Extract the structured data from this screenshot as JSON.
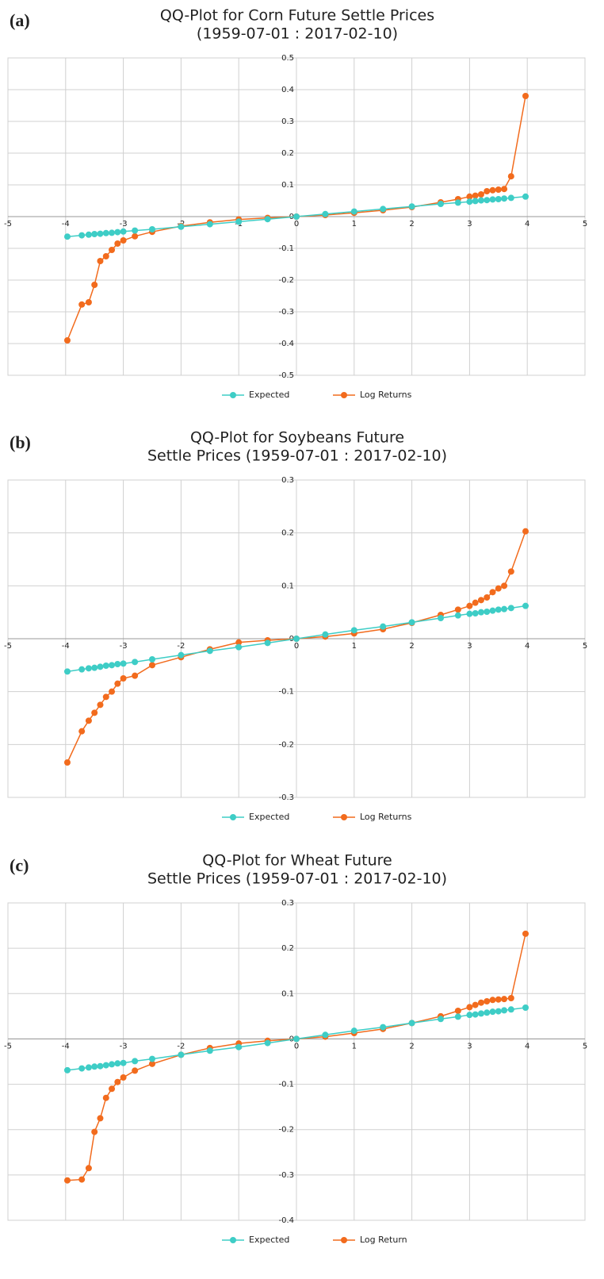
{
  "chart_data": [
    {
      "type": "line",
      "panel": "(a)",
      "title": [
        "QQ-Plot for Corn Future Settle Prices",
        "(1959-07-01 : 2017-02-10)"
      ],
      "xlim": [
        -5,
        5
      ],
      "xticks": [
        -5,
        -4,
        -3,
        -2,
        -1,
        0,
        1,
        2,
        3,
        4,
        5
      ],
      "ylim": [
        -0.5,
        0.5
      ],
      "yticks": [
        -0.5,
        -0.4,
        -0.3,
        -0.2,
        -0.1,
        0,
        0.1,
        0.2,
        0.3,
        0.4,
        0.5
      ],
      "grid": true,
      "legend": "bottom",
      "x": [
        -3.97,
        -3.72,
        -3.6,
        -3.5,
        -3.4,
        -3.3,
        -3.2,
        -3.1,
        -3.0,
        -2.8,
        -2.5,
        -2.0,
        -1.5,
        -1.0,
        -0.5,
        0,
        0.5,
        1.0,
        1.5,
        2.0,
        2.5,
        2.8,
        3.0,
        3.1,
        3.2,
        3.3,
        3.4,
        3.5,
        3.6,
        3.72,
        3.97
      ],
      "series": [
        {
          "name": "Expected",
          "color": "#3ecdc6",
          "values": [
            -0.063,
            -0.059,
            -0.057,
            -0.055,
            -0.054,
            -0.052,
            -0.051,
            -0.049,
            -0.047,
            -0.044,
            -0.04,
            -0.032,
            -0.024,
            -0.016,
            -0.008,
            0,
            0.008,
            0.016,
            0.024,
            0.032,
            0.04,
            0.044,
            0.047,
            0.049,
            0.051,
            0.052,
            0.054,
            0.055,
            0.057,
            0.059,
            0.063
          ]
        },
        {
          "name": "Log Returns",
          "color": "#f26b1d",
          "values": [
            -0.39,
            -0.277,
            -0.27,
            -0.215,
            -0.14,
            -0.125,
            -0.105,
            -0.085,
            -0.075,
            -0.062,
            -0.048,
            -0.03,
            -0.018,
            -0.009,
            -0.004,
            0,
            0.005,
            0.012,
            0.02,
            0.03,
            0.045,
            0.055,
            0.063,
            0.066,
            0.07,
            0.08,
            0.083,
            0.085,
            0.087,
            0.127,
            0.38
          ]
        }
      ]
    },
    {
      "type": "line",
      "panel": "(b)",
      "title": [
        "QQ-Plot for Soybeans Future",
        "Settle Prices (1959-07-01 : 2017-02-10)"
      ],
      "xlim": [
        -5,
        5
      ],
      "xticks": [
        -5,
        -4,
        -3,
        -2,
        -1,
        0,
        1,
        2,
        3,
        4,
        5
      ],
      "ylim": [
        -0.3,
        0.3
      ],
      "yticks": [
        -0.3,
        -0.2,
        -0.1,
        0,
        0.1,
        0.2,
        0.3
      ],
      "grid": true,
      "legend": "bottom",
      "x": [
        -3.97,
        -3.72,
        -3.6,
        -3.5,
        -3.4,
        -3.3,
        -3.2,
        -3.1,
        -3.0,
        -2.8,
        -2.5,
        -2.0,
        -1.5,
        -1.0,
        -0.5,
        0,
        0.5,
        1.0,
        1.5,
        2.0,
        2.5,
        2.8,
        3.0,
        3.1,
        3.2,
        3.3,
        3.4,
        3.5,
        3.6,
        3.72,
        3.97
      ],
      "series": [
        {
          "name": "Expected",
          "color": "#3ecdc6",
          "values": [
            -0.062,
            -0.058,
            -0.056,
            -0.055,
            -0.053,
            -0.051,
            -0.05,
            -0.048,
            -0.047,
            -0.044,
            -0.039,
            -0.031,
            -0.023,
            -0.016,
            -0.008,
            0,
            0.008,
            0.016,
            0.023,
            0.031,
            0.039,
            0.044,
            0.047,
            0.048,
            0.05,
            0.051,
            0.053,
            0.055,
            0.056,
            0.058,
            0.062
          ]
        },
        {
          "name": "Log Returns",
          "color": "#f26b1d",
          "values": [
            -0.234,
            -0.175,
            -0.155,
            -0.14,
            -0.125,
            -0.11,
            -0.1,
            -0.085,
            -0.075,
            -0.07,
            -0.05,
            -0.035,
            -0.02,
            -0.007,
            -0.003,
            0,
            0.004,
            0.01,
            0.018,
            0.03,
            0.045,
            0.055,
            0.062,
            0.068,
            0.073,
            0.078,
            0.088,
            0.095,
            0.1,
            0.127,
            0.203
          ]
        }
      ]
    },
    {
      "type": "line",
      "panel": "(c)",
      "title": [
        "QQ-Plot for Wheat Future",
        "Settle Prices (1959-07-01 : 2017-02-10)"
      ],
      "xlim": [
        -5,
        5
      ],
      "xticks": [
        -5,
        -4,
        -3,
        -2,
        -1,
        0,
        1,
        2,
        3,
        4,
        5
      ],
      "ylim": [
        -0.4,
        0.3
      ],
      "yticks": [
        -0.4,
        -0.3,
        -0.2,
        -0.1,
        0,
        0.1,
        0.2,
        0.3
      ],
      "grid": true,
      "legend": "bottom",
      "x": [
        -3.97,
        -3.72,
        -3.6,
        -3.5,
        -3.4,
        -3.3,
        -3.2,
        -3.1,
        -3.0,
        -2.8,
        -2.5,
        -2.0,
        -1.5,
        -1.0,
        -0.5,
        0,
        0.5,
        1.0,
        1.5,
        2.0,
        2.5,
        2.8,
        3.0,
        3.1,
        3.2,
        3.3,
        3.4,
        3.5,
        3.6,
        3.72,
        3.97
      ],
      "series": [
        {
          "name": "Expected",
          "color": "#3ecdc6",
          "values": [
            -0.069,
            -0.065,
            -0.063,
            -0.061,
            -0.06,
            -0.058,
            -0.056,
            -0.054,
            -0.053,
            -0.049,
            -0.044,
            -0.035,
            -0.026,
            -0.018,
            -0.009,
            0,
            0.009,
            0.018,
            0.026,
            0.035,
            0.044,
            0.049,
            0.053,
            0.054,
            0.056,
            0.058,
            0.06,
            0.061,
            0.063,
            0.065,
            0.069
          ]
        },
        {
          "name": "Log Return",
          "color": "#f26b1d",
          "values": [
            -0.312,
            -0.31,
            -0.285,
            -0.205,
            -0.175,
            -0.13,
            -0.11,
            -0.095,
            -0.085,
            -0.07,
            -0.055,
            -0.035,
            -0.02,
            -0.01,
            -0.004,
            0,
            0.005,
            0.013,
            0.022,
            0.035,
            0.05,
            0.062,
            0.07,
            0.075,
            0.08,
            0.083,
            0.086,
            0.087,
            0.088,
            0.09,
            0.232
          ]
        }
      ]
    }
  ]
}
